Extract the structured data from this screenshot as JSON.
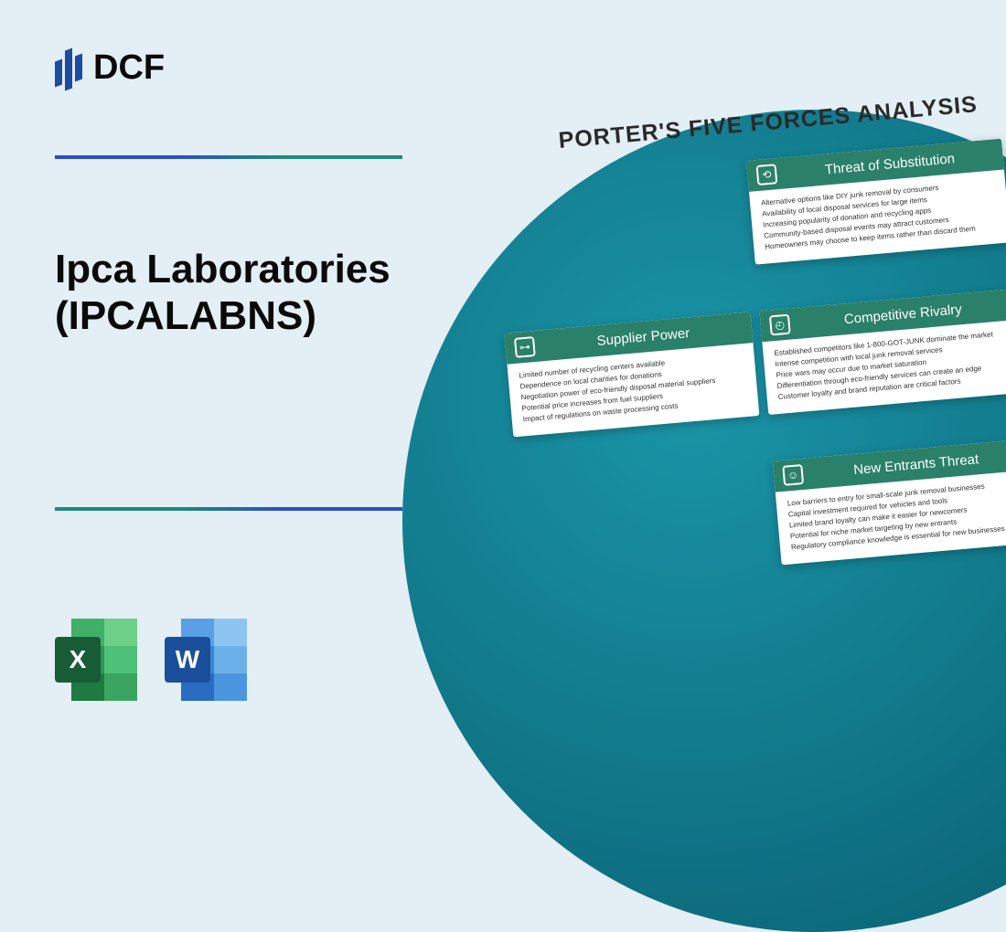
{
  "logo": {
    "text": "DCF"
  },
  "title": {
    "line1": "Ipca Laboratories",
    "line2": "(IPCALABNS)"
  },
  "forces_heading": "PORTER'S FIVE FORCES ANALYSIS",
  "icons": {
    "excel_letter": "X",
    "word_letter": "W"
  },
  "colors": {
    "background": "#e3eef5",
    "card_header": "#2a8068",
    "circle_gradient_start": "#1a95a8",
    "circle_gradient_end": "#0a5a69",
    "divider_blue": "#2b4ec7",
    "divider_teal": "#1e8a7a"
  },
  "cards": {
    "substitution": {
      "title": "Threat of Substitution",
      "items": [
        "Alternative options like DIY junk removal by consumers",
        "Availability of local disposal services for large items",
        "Increasing popularity of donation and recycling apps",
        "Community-based disposal events may attract customers",
        "Homeowners may choose to keep items rather than discard them"
      ]
    },
    "supplier": {
      "title": "Supplier Power",
      "items": [
        "Limited number of recycling centers available",
        "Dependence on local charities for donations",
        "Negotiation power of eco-friendly disposal material suppliers",
        "Potential price increases from fuel suppliers",
        "Impact of regulations on waste processing costs"
      ]
    },
    "rivalry": {
      "title": "Competitive Rivalry",
      "items": [
        "Established competitors like 1-800-GOT-JUNK dominate the market",
        "Intense competition with local junk removal services",
        "Price wars may occur due to market saturation",
        "Differentiation through eco-friendly services can create an edge",
        "Customer loyalty and brand reputation are critical factors"
      ]
    },
    "entrants": {
      "title": "New Entrants Threat",
      "items": [
        "Low barriers to entry for small-scale junk removal businesses",
        "Capital investment required for vehicles and tools",
        "Limited brand loyalty can make it easier for newcomers",
        "Potential for niche market targeting by new entrants",
        "Regulatory compliance knowledge is essential for new businesses"
      ]
    }
  }
}
